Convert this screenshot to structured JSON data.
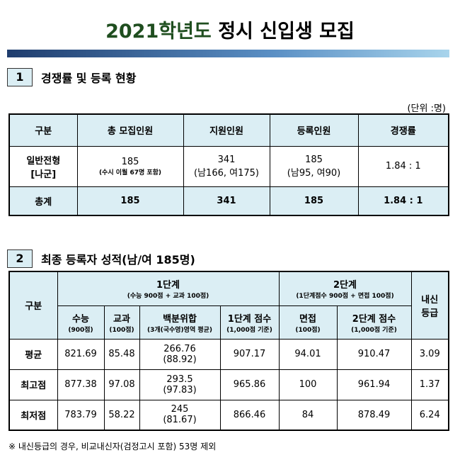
{
  "header": {
    "title_year": "2021학년도",
    "title_rest": "정시 신입생 모집"
  },
  "section1": {
    "number": "1",
    "heading": "경쟁률 및 등록 현황",
    "unit": "(단위 :명)",
    "table": {
      "header": [
        [
          "구분"
        ],
        [
          "총 모집인원"
        ],
        [
          "지원인원"
        ],
        [
          "등록인원"
        ],
        [
          "경쟁률"
        ]
      ],
      "rows": [
        [
          [
            "일반전형",
            "[나군]"
          ],
          [
            "185",
            "(수시 이월 67명 포함)"
          ],
          [
            "341",
            "(남166, 여175)"
          ],
          [
            "185",
            "(남95, 여90)"
          ],
          [
            "1.84 : 1"
          ]
        ],
        [
          [
            "총계"
          ],
          [
            "185"
          ],
          [
            "341"
          ],
          [
            "185"
          ],
          [
            "1.84 : 1"
          ]
        ]
      ]
    }
  },
  "section2": {
    "number": "2",
    "heading": "최종 등록자 성적(남/여 185명)",
    "table": {
      "group_header": [
        [
          "구분"
        ],
        [
          "1단계",
          "(수능 900점 + 교과 100점)"
        ],
        [
          "2단계",
          "(1단계점수 900점 + 면접 100점)"
        ],
        [
          "내신",
          "등급"
        ]
      ],
      "sub_header": [
        [
          "수능",
          "(900점)"
        ],
        [
          "교과",
          "(100점)"
        ],
        [
          "백분위합",
          "(3개(국수영)영역 평균)"
        ],
        [
          "1단계 점수",
          "(1,000점 기준)"
        ],
        [
          "면접",
          "(100점)"
        ],
        [
          "2단계 점수",
          "(1,000점 기준)"
        ]
      ],
      "rows": [
        [
          [
            "평균"
          ],
          [
            "821.69"
          ],
          [
            "85.48"
          ],
          [
            "266.76",
            "(88.92)"
          ],
          [
            "907.17"
          ],
          [
            "94.01"
          ],
          [
            "910.47"
          ],
          [
            "3.09"
          ]
        ],
        [
          [
            "최고점"
          ],
          [
            "877.38"
          ],
          [
            "97.08"
          ],
          [
            "293.5",
            "(97.83)"
          ],
          [
            "965.86"
          ],
          [
            "100"
          ],
          [
            "961.94"
          ],
          [
            "1.37"
          ]
        ],
        [
          [
            "최저점"
          ],
          [
            "783.79"
          ],
          [
            "58.22"
          ],
          [
            "245",
            "(81.67)"
          ],
          [
            "866.46"
          ],
          [
            "84"
          ],
          [
            "878.49"
          ],
          [
            "6.24"
          ]
        ]
      ]
    },
    "footnote": "※ 내신등급의 경우, 비교내신자(검정고시 포함) 53명 제외"
  }
}
